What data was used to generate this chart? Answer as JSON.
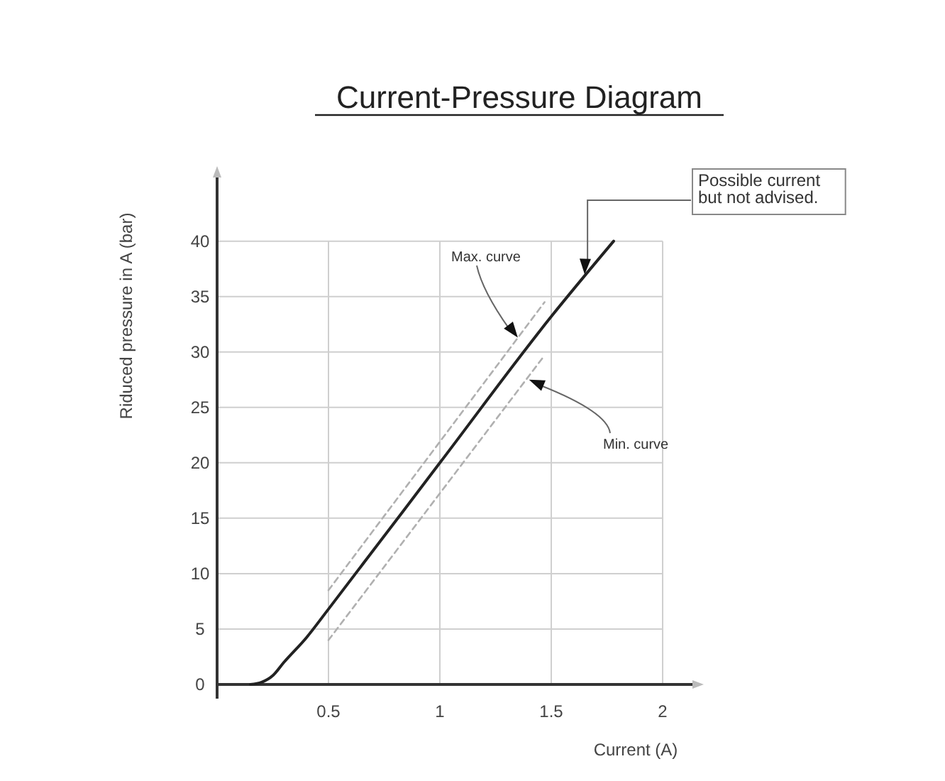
{
  "chart_data": {
    "type": "line",
    "title": "Current-Pressure Diagram",
    "xlabel": "Current (A)",
    "ylabel": "Riduced pressure in A (bar)",
    "xlim": [
      0,
      2.14
    ],
    "ylim": [
      0,
      46
    ],
    "xticks": [
      0.5,
      1,
      1.5,
      2
    ],
    "yticks": [
      0,
      5,
      10,
      15,
      20,
      25,
      30,
      35,
      40
    ],
    "grid": true,
    "marker": "none",
    "series": [
      {
        "color": "#222222",
        "line_style": "solid",
        "x": [
          0.15,
          0.2,
          0.25,
          0.3,
          0.4,
          0.5,
          1,
          1.5,
          1.78
        ],
        "values": [
          0,
          0.2,
          0.8,
          2,
          4.2,
          6.8,
          20,
          33.2,
          40
        ]
      },
      {
        "color": "#b0b0b0",
        "line_style": "dashed",
        "x": [
          0.5,
          1.47
        ],
        "values": [
          8.5,
          34.5
        ]
      },
      {
        "color": "#b0b0b0",
        "line_style": "dashed",
        "x": [
          0.5,
          1.47
        ],
        "values": [
          4,
          29.7
        ]
      }
    ],
    "annotations": [
      {
        "text": "Max. curve",
        "x": 1.35,
        "y": 31.3
      },
      {
        "text": "Min. curve",
        "x": 1.4,
        "y": 27.5
      },
      {
        "text": "Possible current\nbut not advised.",
        "x": 1.65,
        "y": 37
      }
    ]
  }
}
